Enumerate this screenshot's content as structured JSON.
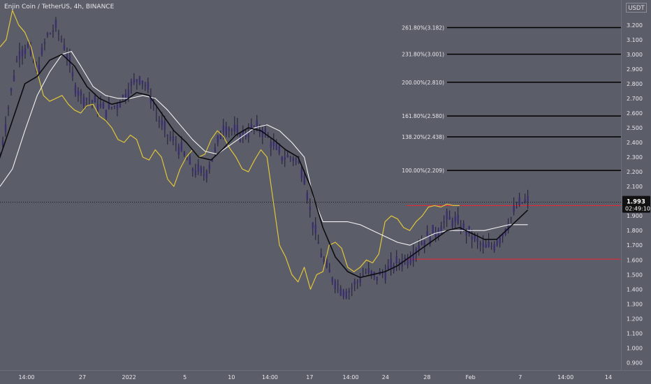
{
  "title": "Enjin Coin / TetherUS, 4h, BINANCE",
  "currency": "USDT",
  "price": {
    "last": "1.993",
    "countdown": "02:49:10",
    "last_value": 1.993
  },
  "colors": {
    "background": "#5b5d68",
    "candle_body": "#3b2f6e",
    "candle_wick": "#1e1b3a",
    "ma_black": "#0c0c10",
    "line_white": "#f2f2f2",
    "line_yellow": "#e2c53a",
    "fib_line": "#000000",
    "red_line": "#e0283a",
    "price_badge": "#111111"
  },
  "chart_data": {
    "type": "line",
    "title": "Enjin Coin / TetherUS, 4h, BINANCE",
    "ylim": [
      0.85,
      3.37
    ],
    "y_ticks": [
      "3.300",
      "3.200",
      "3.100",
      "3.000",
      "2.900",
      "2.800",
      "2.700",
      "2.600",
      "2.500",
      "2.400",
      "2.300",
      "2.200",
      "2.100",
      "2.000",
      "1.900",
      "1.800",
      "1.700",
      "1.600",
      "1.500",
      "1.400",
      "1.300",
      "1.200",
      "1.100",
      "1.000",
      "0.900"
    ],
    "y_tick_values": [
      3.3,
      3.2,
      3.1,
      3.0,
      2.9,
      2.8,
      2.7,
      2.6,
      2.5,
      2.4,
      2.3,
      2.2,
      2.1,
      2.0,
      1.9,
      1.8,
      1.7,
      1.6,
      1.5,
      1.4,
      1.3,
      1.2,
      1.1,
      1.0,
      0.9
    ],
    "x_ticks": [
      "14:00",
      "27",
      "2022",
      "5",
      "10",
      "14:00",
      "17",
      "14:00",
      "24",
      "28",
      "Feb",
      "7",
      "14:00",
      "14"
    ],
    "x_tick_pos": [
      0.0,
      0.09,
      0.165,
      0.255,
      0.33,
      0.392,
      0.456,
      0.522,
      0.578,
      0.645,
      0.715,
      0.795,
      0.868,
      0.937
    ],
    "fib_levels": [
      {
        "label": "261.80%(3.182)",
        "value": 3.182
      },
      {
        "label": "231.80%(3.001)",
        "value": 3.001
      },
      {
        "label": "200.00%(2.810)",
        "value": 2.81
      },
      {
        "label": "161.80%(2.580)",
        "value": 2.58
      },
      {
        "label": "138.20%(2.438)",
        "value": 2.438
      },
      {
        "label": "100.00%(2.209)",
        "value": 2.209
      }
    ],
    "red_levels": [
      1.97,
      1.605
    ],
    "series": [
      {
        "key": "price",
        "values": [
          [
            0,
            2.3
          ],
          [
            0.01,
            2.55
          ],
          [
            0.02,
            2.8
          ],
          [
            0.03,
            3.02
          ],
          [
            0.045,
            3.05
          ],
          [
            0.06,
            2.88
          ],
          [
            0.075,
            3.12
          ],
          [
            0.09,
            3.18
          ],
          [
            0.105,
            3.05
          ],
          [
            0.12,
            2.8
          ],
          [
            0.13,
            2.72
          ],
          [
            0.15,
            2.68
          ],
          [
            0.17,
            2.62
          ],
          [
            0.19,
            2.66
          ],
          [
            0.21,
            2.78
          ],
          [
            0.225,
            2.85
          ],
          [
            0.24,
            2.75
          ],
          [
            0.255,
            2.56
          ],
          [
            0.27,
            2.45
          ],
          [
            0.29,
            2.36
          ],
          [
            0.31,
            2.22
          ],
          [
            0.33,
            2.18
          ],
          [
            0.345,
            2.32
          ],
          [
            0.36,
            2.52
          ],
          [
            0.375,
            2.48
          ],
          [
            0.39,
            2.45
          ],
          [
            0.41,
            2.5
          ],
          [
            0.425,
            2.48
          ],
          [
            0.44,
            2.38
          ],
          [
            0.455,
            2.3
          ],
          [
            0.47,
            2.3
          ],
          [
            0.48,
            2.27
          ],
          [
            0.49,
            2.18
          ],
          [
            0.5,
            1.92
          ],
          [
            0.51,
            1.75
          ],
          [
            0.52,
            1.6
          ],
          [
            0.535,
            1.48
          ],
          [
            0.55,
            1.4
          ],
          [
            0.56,
            1.38
          ],
          [
            0.575,
            1.45
          ],
          [
            0.59,
            1.52
          ],
          [
            0.605,
            1.48
          ],
          [
            0.62,
            1.52
          ],
          [
            0.64,
            1.58
          ],
          [
            0.66,
            1.62
          ],
          [
            0.675,
            1.7
          ],
          [
            0.69,
            1.76
          ],
          [
            0.705,
            1.8
          ],
          [
            0.72,
            1.88
          ],
          [
            0.735,
            1.86
          ],
          [
            0.75,
            1.8
          ],
          [
            0.765,
            1.74
          ],
          [
            0.78,
            1.68
          ],
          [
            0.795,
            1.7
          ],
          [
            0.81,
            1.78
          ],
          [
            0.82,
            1.86
          ],
          [
            0.83,
            1.95
          ],
          [
            0.84,
            1.99
          ],
          [
            0.85,
            2.0
          ]
        ]
      },
      {
        "key": "ma_black",
        "values": [
          [
            0,
            2.3
          ],
          [
            0.02,
            2.55
          ],
          [
            0.04,
            2.8
          ],
          [
            0.06,
            2.85
          ],
          [
            0.08,
            2.96
          ],
          [
            0.1,
            3.0
          ],
          [
            0.12,
            2.92
          ],
          [
            0.14,
            2.78
          ],
          [
            0.16,
            2.7
          ],
          [
            0.18,
            2.66
          ],
          [
            0.2,
            2.68
          ],
          [
            0.22,
            2.74
          ],
          [
            0.24,
            2.72
          ],
          [
            0.26,
            2.6
          ],
          [
            0.28,
            2.48
          ],
          [
            0.3,
            2.4
          ],
          [
            0.32,
            2.3
          ],
          [
            0.34,
            2.28
          ],
          [
            0.36,
            2.36
          ],
          [
            0.38,
            2.45
          ],
          [
            0.4,
            2.5
          ],
          [
            0.42,
            2.48
          ],
          [
            0.44,
            2.42
          ],
          [
            0.46,
            2.35
          ],
          [
            0.48,
            2.3
          ],
          [
            0.5,
            2.1
          ],
          [
            0.52,
            1.82
          ],
          [
            0.54,
            1.62
          ],
          [
            0.56,
            1.52
          ],
          [
            0.58,
            1.48
          ],
          [
            0.6,
            1.5
          ],
          [
            0.62,
            1.52
          ],
          [
            0.64,
            1.56
          ],
          [
            0.66,
            1.62
          ],
          [
            0.68,
            1.68
          ],
          [
            0.7,
            1.74
          ],
          [
            0.72,
            1.8
          ],
          [
            0.74,
            1.82
          ],
          [
            0.76,
            1.78
          ],
          [
            0.78,
            1.74
          ],
          [
            0.8,
            1.74
          ],
          [
            0.82,
            1.82
          ],
          [
            0.84,
            1.9
          ],
          [
            0.85,
            1.94
          ]
        ]
      },
      {
        "key": "line_white",
        "values": [
          [
            0,
            2.1
          ],
          [
            0.02,
            2.22
          ],
          [
            0.04,
            2.48
          ],
          [
            0.06,
            2.72
          ],
          [
            0.08,
            2.88
          ],
          [
            0.1,
            3.0
          ],
          [
            0.115,
            3.02
          ],
          [
            0.13,
            2.92
          ],
          [
            0.15,
            2.78
          ],
          [
            0.17,
            2.72
          ],
          [
            0.19,
            2.7
          ],
          [
            0.21,
            2.7
          ],
          [
            0.23,
            2.72
          ],
          [
            0.25,
            2.7
          ],
          [
            0.27,
            2.62
          ],
          [
            0.29,
            2.52
          ],
          [
            0.31,
            2.42
          ],
          [
            0.33,
            2.34
          ],
          [
            0.35,
            2.32
          ],
          [
            0.37,
            2.38
          ],
          [
            0.39,
            2.44
          ],
          [
            0.41,
            2.5
          ],
          [
            0.43,
            2.52
          ],
          [
            0.45,
            2.48
          ],
          [
            0.47,
            2.4
          ],
          [
            0.49,
            2.3
          ],
          [
            0.505,
            2.02
          ],
          [
            0.52,
            1.86
          ],
          [
            0.54,
            1.86
          ],
          [
            0.56,
            1.86
          ],
          [
            0.58,
            1.84
          ],
          [
            0.6,
            1.8
          ],
          [
            0.62,
            1.76
          ],
          [
            0.64,
            1.72
          ],
          [
            0.66,
            1.7
          ],
          [
            0.68,
            1.74
          ],
          [
            0.7,
            1.78
          ],
          [
            0.72,
            1.8
          ],
          [
            0.74,
            1.8
          ],
          [
            0.76,
            1.8
          ],
          [
            0.78,
            1.8
          ],
          [
            0.8,
            1.82
          ],
          [
            0.82,
            1.84
          ],
          [
            0.84,
            1.84
          ],
          [
            0.85,
            1.84
          ]
        ]
      },
      {
        "key": "line_yellow",
        "values": [
          [
            0,
            3.05
          ],
          [
            0.01,
            3.1
          ],
          [
            0.02,
            3.3
          ],
          [
            0.03,
            3.2
          ],
          [
            0.04,
            3.15
          ],
          [
            0.05,
            3.05
          ],
          [
            0.06,
            2.88
          ],
          [
            0.07,
            2.72
          ],
          [
            0.08,
            2.68
          ],
          [
            0.09,
            2.7
          ],
          [
            0.1,
            2.72
          ],
          [
            0.11,
            2.66
          ],
          [
            0.12,
            2.62
          ],
          [
            0.13,
            2.6
          ],
          [
            0.14,
            2.65
          ],
          [
            0.15,
            2.66
          ],
          [
            0.16,
            2.58
          ],
          [
            0.17,
            2.55
          ],
          [
            0.18,
            2.5
          ],
          [
            0.19,
            2.42
          ],
          [
            0.2,
            2.4
          ],
          [
            0.21,
            2.45
          ],
          [
            0.22,
            2.42
          ],
          [
            0.23,
            2.3
          ],
          [
            0.24,
            2.28
          ],
          [
            0.25,
            2.35
          ],
          [
            0.26,
            2.3
          ],
          [
            0.27,
            2.15
          ],
          [
            0.28,
            2.1
          ],
          [
            0.29,
            2.22
          ],
          [
            0.3,
            2.3
          ],
          [
            0.31,
            2.35
          ],
          [
            0.32,
            2.3
          ],
          [
            0.33,
            2.32
          ],
          [
            0.34,
            2.42
          ],
          [
            0.35,
            2.48
          ],
          [
            0.36,
            2.44
          ],
          [
            0.37,
            2.36
          ],
          [
            0.38,
            2.3
          ],
          [
            0.39,
            2.22
          ],
          [
            0.4,
            2.2
          ],
          [
            0.41,
            2.28
          ],
          [
            0.42,
            2.35
          ],
          [
            0.43,
            2.3
          ],
          [
            0.44,
            2.0
          ],
          [
            0.45,
            1.7
          ],
          [
            0.46,
            1.62
          ],
          [
            0.47,
            1.5
          ],
          [
            0.48,
            1.45
          ],
          [
            0.49,
            1.55
          ],
          [
            0.5,
            1.4
          ],
          [
            0.51,
            1.5
          ],
          [
            0.52,
            1.52
          ],
          [
            0.53,
            1.7
          ],
          [
            0.54,
            1.72
          ],
          [
            0.55,
            1.68
          ],
          [
            0.56,
            1.55
          ],
          [
            0.57,
            1.52
          ],
          [
            0.58,
            1.55
          ],
          [
            0.59,
            1.6
          ],
          [
            0.6,
            1.58
          ],
          [
            0.61,
            1.64
          ],
          [
            0.62,
            1.86
          ],
          [
            0.63,
            1.9
          ],
          [
            0.64,
            1.88
          ],
          [
            0.65,
            1.82
          ],
          [
            0.66,
            1.8
          ],
          [
            0.67,
            1.86
          ],
          [
            0.68,
            1.9
          ],
          [
            0.69,
            1.96
          ],
          [
            0.7,
            1.97
          ],
          [
            0.71,
            1.96
          ],
          [
            0.72,
            1.98
          ],
          [
            0.73,
            1.97
          ],
          [
            0.74,
            1.97
          ]
        ]
      }
    ]
  }
}
